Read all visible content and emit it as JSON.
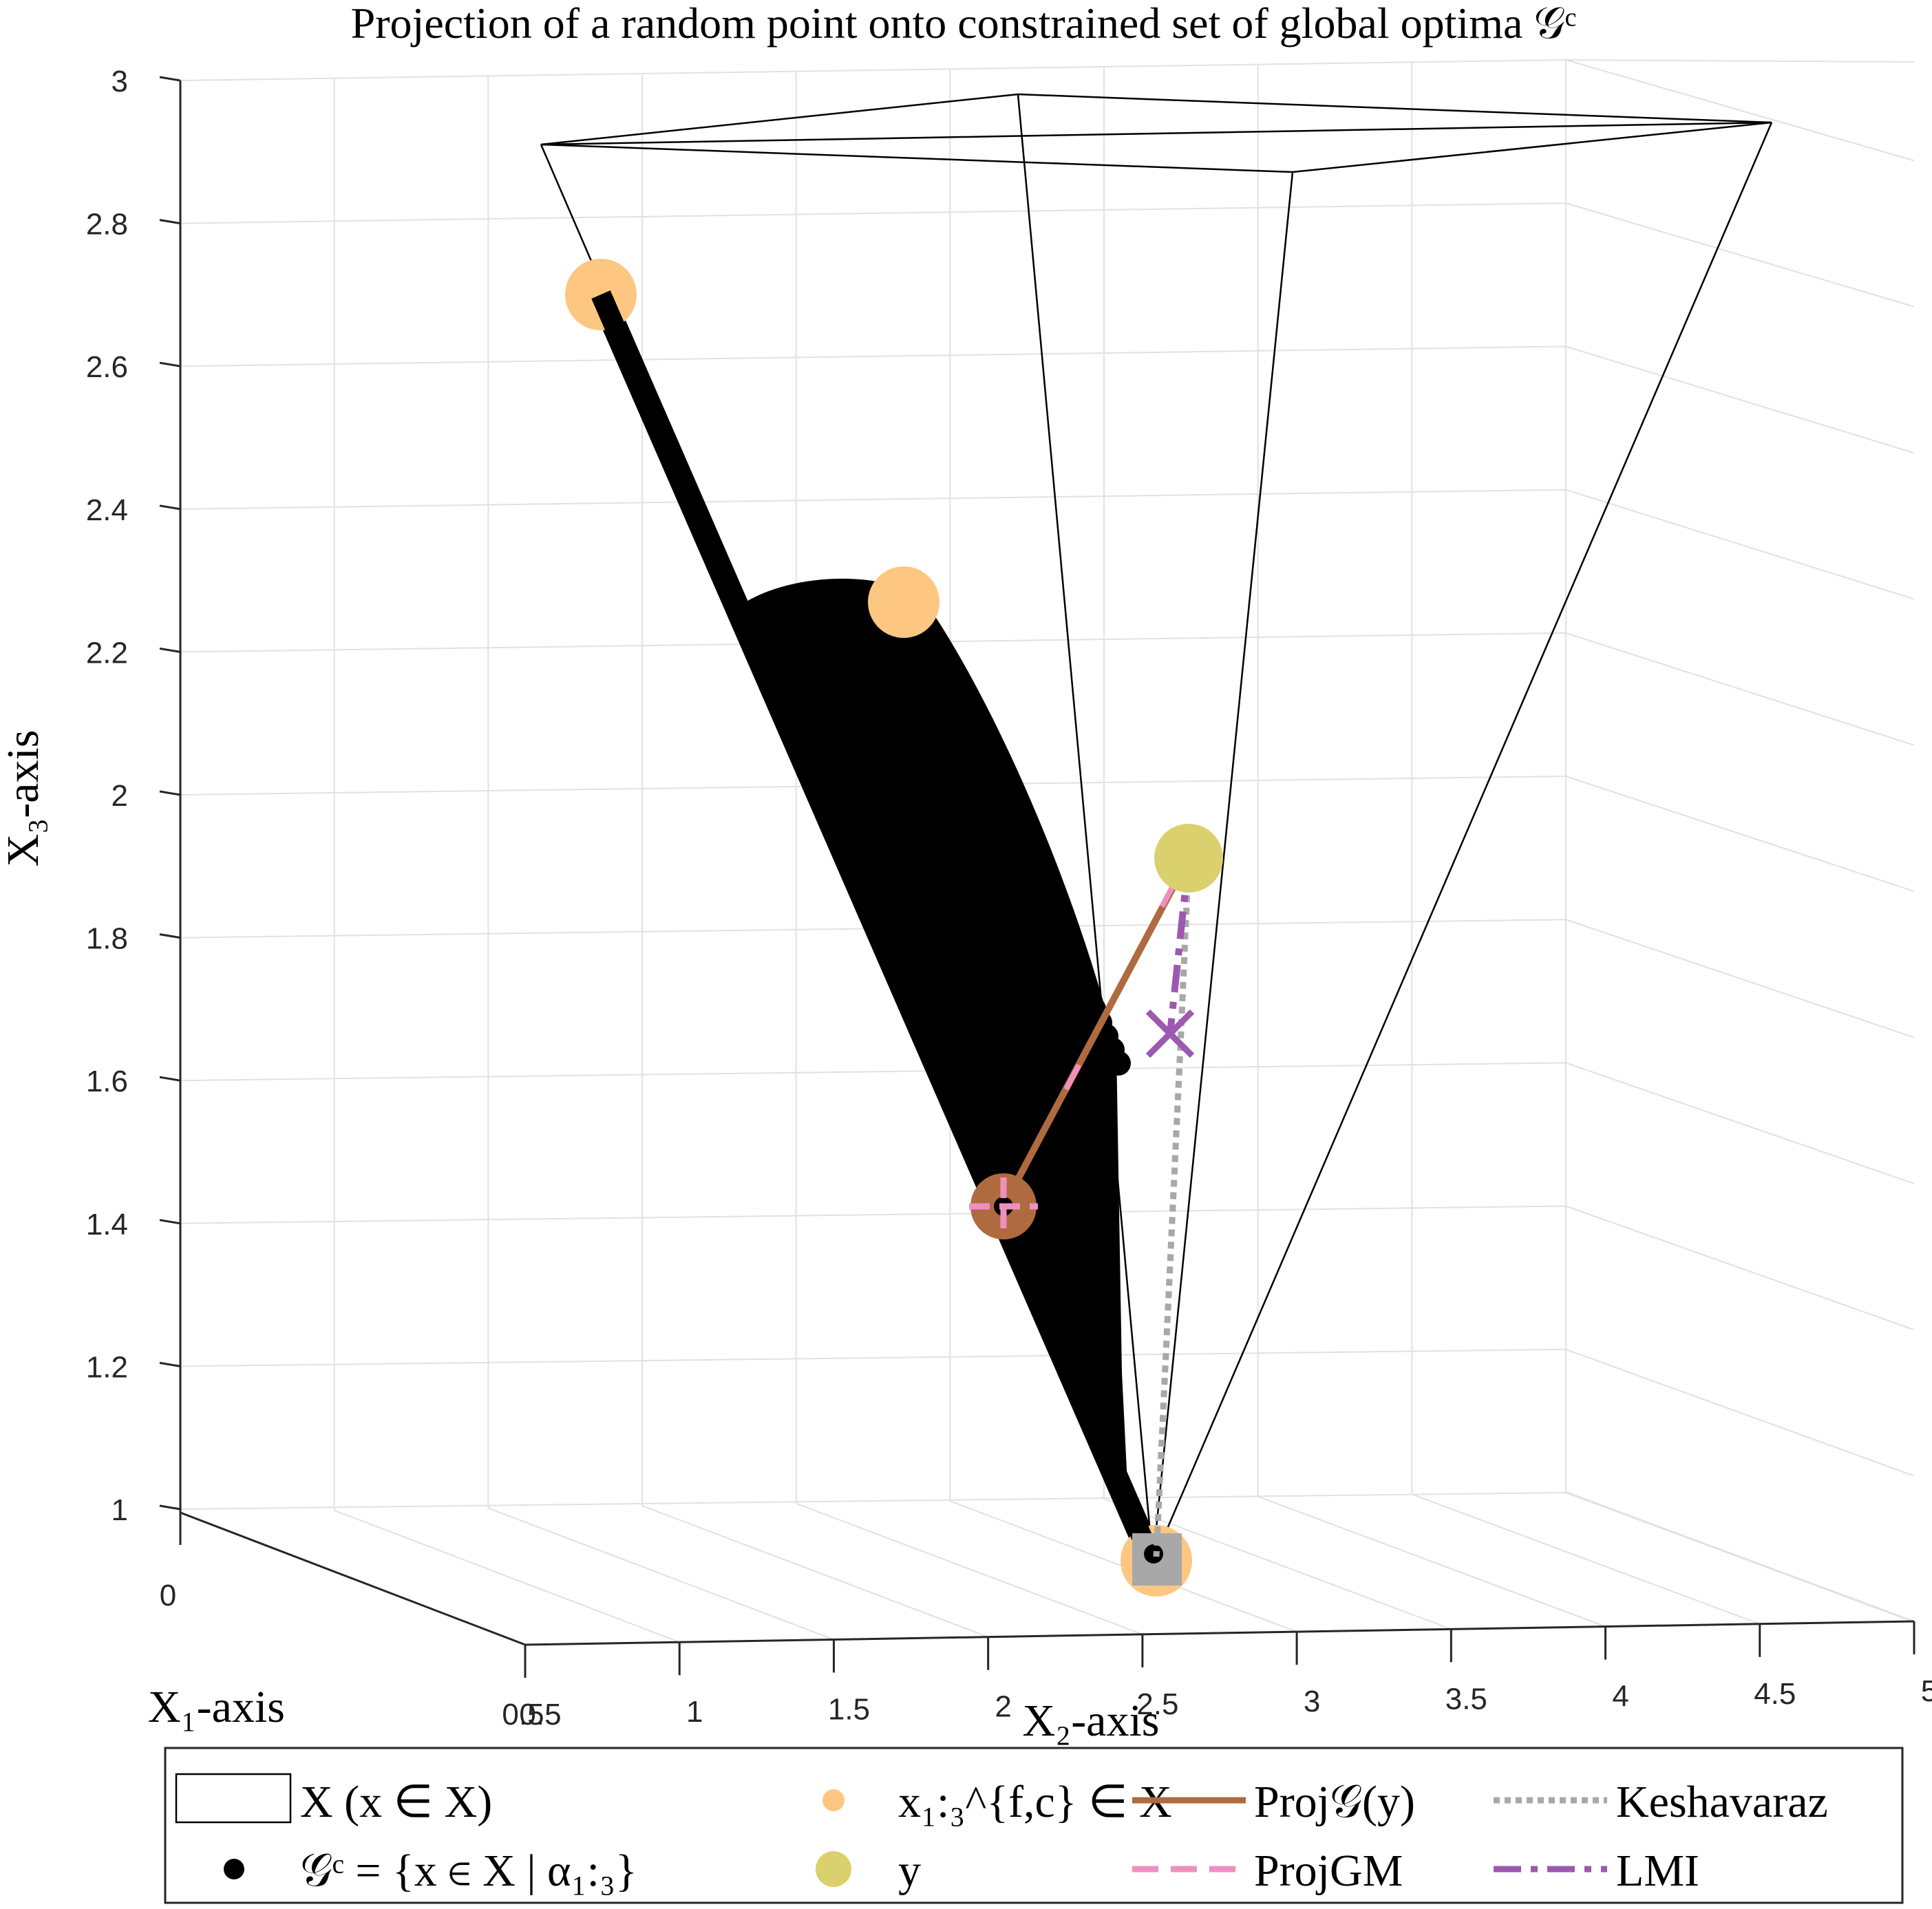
{
  "chart_data": {
    "type": "scatter",
    "title": "Projection of a random point onto constrained set of global optima 𝒢ᶜ",
    "xlabel": "X₁-axis",
    "ylabel": "X₂-axis",
    "zlabel": "X₃-axis",
    "x_ticks": [
      "0",
      "0.5"
    ],
    "y_ticks": [
      "0.5",
      "1",
      "1.5",
      "2",
      "2.5",
      "3",
      "3.5",
      "4",
      "4.5",
      "5"
    ],
    "z_ticks": [
      "1",
      "1.2",
      "1.4",
      "1.6",
      "1.8",
      "2",
      "2.2",
      "2.4",
      "2.6",
      "2.8",
      "3"
    ],
    "ylim": [
      0.5,
      5
    ],
    "zlim": [
      1,
      3
    ],
    "grid": true,
    "legend_position": "bottom",
    "legend": [
      {
        "key": "X",
        "label": "X    (x ∈ X)"
      },
      {
        "key": "G",
        "label": "𝒢ᶜ = {x ∈ X | α₁:₃}"
      },
      {
        "key": "xf",
        "label": "x₁:₃^{f,c} ∈ X"
      },
      {
        "key": "y",
        "label": "y"
      },
      {
        "key": "proj",
        "label": "Proj𝒢(y)"
      },
      {
        "key": "projgm",
        "label": "ProjGM"
      },
      {
        "key": "kesh",
        "label": "Keshavaraz"
      },
      {
        "key": "lmi",
        "label": "LMI"
      }
    ],
    "colors": {
      "xf": "#fdc782",
      "y": "#dbd06e",
      "proj": "#b06a3f",
      "projgm": "#ef8fc0",
      "kesh": "#a8a8a8",
      "lmi": "#9b59b0",
      "G": "#000000"
    }
  }
}
